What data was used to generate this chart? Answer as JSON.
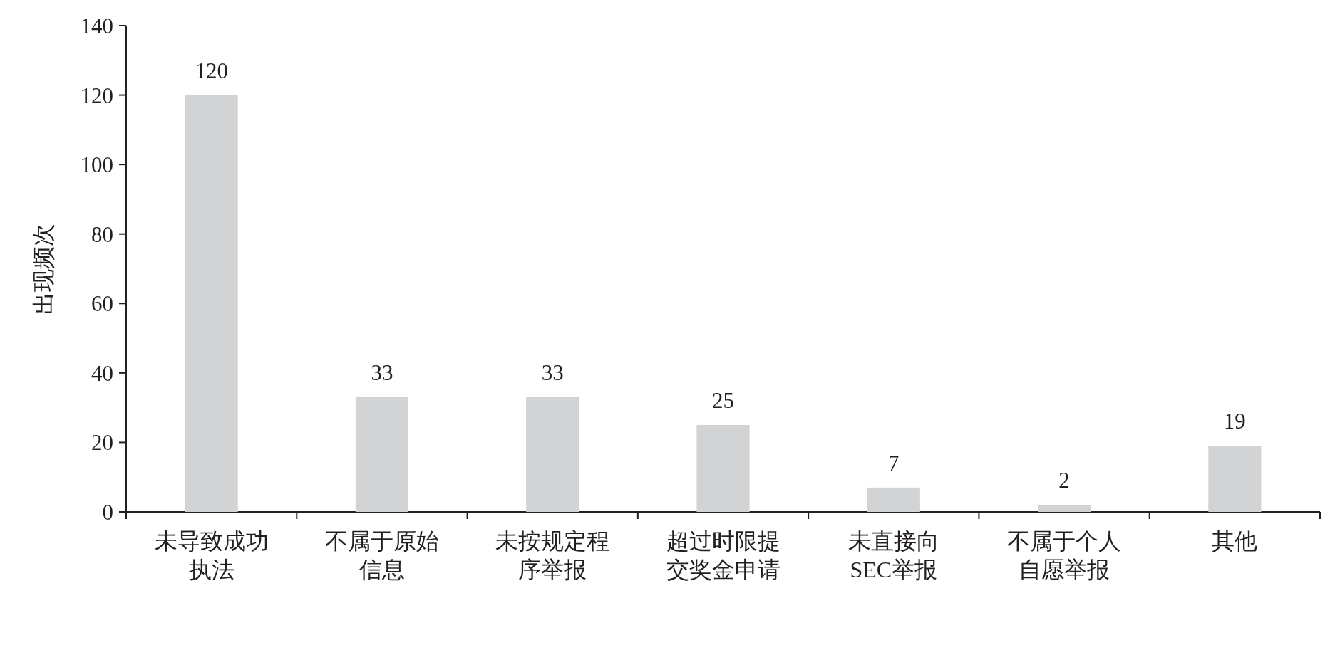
{
  "chart_data": {
    "type": "bar",
    "ylabel": "出现频次",
    "categories": [
      "未导致成功执法",
      "不属于原始信息",
      "未按规定程序举报",
      "超过时限提交奖金申请",
      "未直接向SEC举报",
      "不属于个人自愿举报",
      "其他"
    ],
    "values": [
      120,
      33,
      33,
      25,
      7,
      2,
      19
    ],
    "color": "#d1d3d4",
    "ylim": [
      0,
      140
    ],
    "yticks": [
      0,
      20,
      40,
      60,
      80,
      100,
      120,
      140
    ],
    "data_labels": true
  }
}
